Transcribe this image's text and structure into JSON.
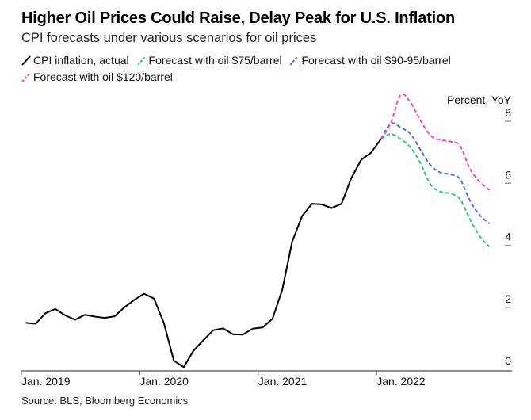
{
  "header": {
    "title": "Higher Oil Prices Could Raise, Delay Peak for U.S. Inflation",
    "subtitle": "CPI forecasts under various scenarios for oil prices"
  },
  "legend": [
    {
      "label": "CPI inflation, actual",
      "color": "#000000",
      "dashed": false
    },
    {
      "label": "Forecast with oil $75/barrel",
      "color": "#2fc878",
      "dashed": true
    },
    {
      "label": "Forecast with oil $90-95/barrel",
      "color": "#4a73f0",
      "dashed": true
    },
    {
      "label": "Forecast with oil $120/barrel",
      "color": "#f549b5",
      "dashed": true
    }
  ],
  "footer": {
    "source": "Source: BLS, Bloomberg Economics"
  },
  "chart_data": {
    "type": "line",
    "title": "Higher Oil Prices Could Raise, Delay Peak for U.S. Inflation",
    "subtitle": "CPI forecasts under various scenarios for oil prices",
    "xlabel": "",
    "ylabel": "Percent, YoY",
    "ylim": [
      0,
      8
    ],
    "yticks": [
      0,
      2,
      4,
      6,
      8
    ],
    "xticks": [
      {
        "label": "Jan. 2019",
        "month_index": 0
      },
      {
        "label": "Jan. 2020",
        "month_index": 12
      },
      {
        "label": "Jan. 2021",
        "month_index": 24
      },
      {
        "label": "Jan. 2022",
        "month_index": 36
      }
    ],
    "x_range_months": [
      0,
      48
    ],
    "grid": false,
    "legend_position": "top-left",
    "series": [
      {
        "name": "CPI inflation, actual",
        "color": "#000000",
        "dashed": false,
        "start": "Jan. 2019",
        "start_month_index": 0,
        "values": [
          1.55,
          1.52,
          1.86,
          2.0,
          1.79,
          1.65,
          1.81,
          1.75,
          1.71,
          1.76,
          2.05,
          2.29,
          2.49,
          2.33,
          1.54,
          0.33,
          0.12,
          0.65,
          0.99,
          1.31,
          1.37,
          1.18,
          1.17,
          1.36,
          1.4,
          1.68,
          2.62,
          4.16,
          4.99,
          5.39,
          5.37,
          5.25,
          5.39,
          6.22,
          6.81,
          7.04,
          7.48
        ]
      },
      {
        "name": "Forecast with oil $75/barrel",
        "color": "#2fc878",
        "dashed": true,
        "start": "Jan. 2022",
        "start_month_index": 36,
        "values": [
          7.48,
          7.64,
          7.47,
          7.21,
          6.7,
          6.02,
          5.78,
          5.72,
          5.55,
          4.9,
          4.35,
          4.0
        ]
      },
      {
        "name": "Forecast with oil $90-95/barrel",
        "color": "#4a73f0",
        "dashed": true,
        "start": "Jan. 2022",
        "start_month_index": 36,
        "values": [
          7.48,
          7.98,
          7.85,
          7.64,
          7.13,
          6.64,
          6.4,
          6.34,
          6.19,
          5.5,
          5.03,
          4.75
        ]
      },
      {
        "name": "Forecast with oil $120/barrel",
        "color": "#f549b5",
        "dashed": true,
        "start": "Jan. 2022",
        "start_month_index": 36,
        "values": [
          7.48,
          8.0,
          8.9,
          8.65,
          8.08,
          7.6,
          7.45,
          7.4,
          7.26,
          6.53,
          6.1,
          5.83
        ]
      }
    ]
  }
}
